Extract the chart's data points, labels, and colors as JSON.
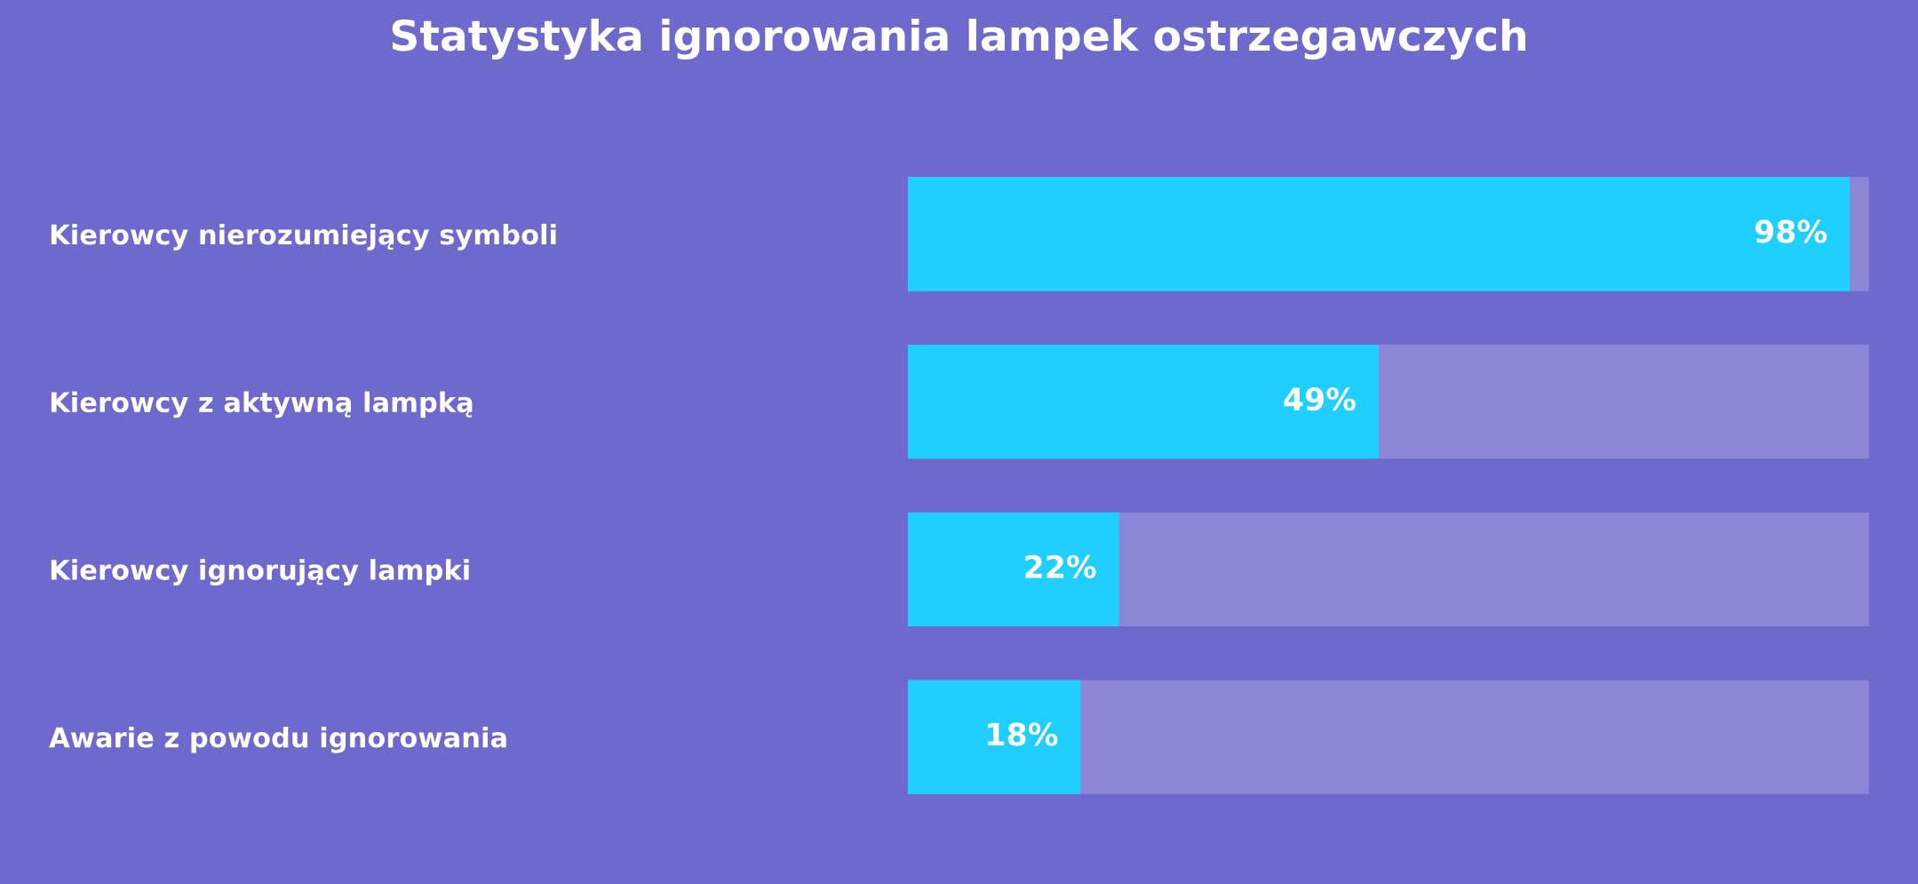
{
  "chart_data": {
    "type": "bar",
    "orientation": "horizontal",
    "title": "Statystyka ignorowania lampek ostrzegawczych",
    "categories": [
      "Kierowcy nierozumiejący symboli",
      "Kierowcy z aktywną lampką",
      "Kierowcy ignorujący lampki",
      "Awarie z powodu ignorowania"
    ],
    "values": [
      98,
      49,
      22,
      18
    ],
    "value_labels": [
      "98%",
      "49%",
      "22%",
      "18%"
    ],
    "color": "#1fcfff",
    "xlim": [
      0,
      100
    ],
    "tick_labels": "y",
    "grid": false,
    "legend": false
  }
}
